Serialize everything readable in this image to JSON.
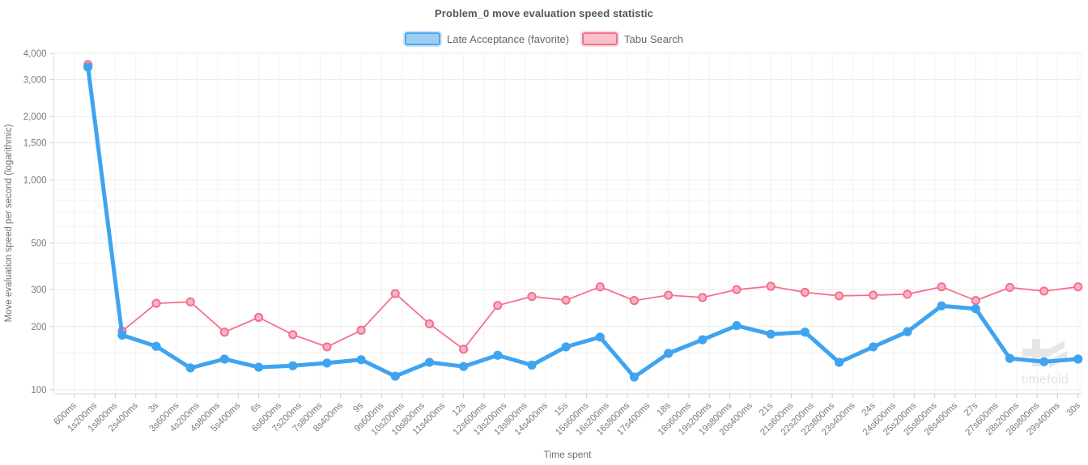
{
  "header": {
    "title": "Problem_0 move evaluation speed statistic"
  },
  "legend": {
    "items": [
      {
        "label": "Late Acceptance (favorite)",
        "border_color": "#4BA7EF",
        "fill_color": "#9CCEF4"
      },
      {
        "label": "Tabu Search",
        "border_color": "#F2718E",
        "fill_color": "#F9BFCC"
      }
    ]
  },
  "axes": {
    "x_title": "Time spent",
    "y_title": "Move evaluation speed per second (logarithmic)"
  },
  "watermark": {
    "text": "timefold"
  },
  "chart_data": {
    "type": "line",
    "title": "Problem_0 move evaluation speed statistic",
    "xlabel": "Time spent",
    "ylabel": "Move evaluation speed per second (logarithmic)",
    "y_scale": "log",
    "grid": true,
    "legend_position": "top",
    "x_unit": "seconds",
    "x": [
      1,
      2,
      3,
      4,
      5,
      6,
      7,
      8,
      9,
      10,
      11,
      12,
      13,
      14,
      15,
      16,
      17,
      18,
      19,
      20,
      21,
      22,
      23,
      24,
      25,
      26,
      27,
      28,
      29,
      30
    ],
    "series": [
      {
        "name": "Late Acceptance (favorite)",
        "color": "#3FA4F0",
        "line_width": 5,
        "marker": "filled-circle",
        "values": [
          3440,
          182,
          161,
          127,
          140,
          128,
          130,
          134,
          139,
          116,
          135,
          129,
          146,
          131,
          160,
          178,
          115,
          149,
          173,
          202,
          184,
          188,
          135,
          160,
          189,
          251,
          243,
          141,
          136,
          140
        ]
      },
      {
        "name": "Tabu Search",
        "color": "#F4708D",
        "line_width": 1.8,
        "marker": "open-circle",
        "marker_fill": "#F9B3C3",
        "values": [
          3540,
          190,
          258,
          262,
          188,
          221,
          183,
          160,
          192,
          287,
          206,
          156,
          252,
          278,
          267,
          309,
          266,
          282,
          275,
          300,
          311,
          291,
          280,
          282,
          285,
          309,
          266,
          307,
          295,
          309
        ]
      }
    ],
    "x_tick_interval_s": 0.6,
    "x_tick_labels": [
      "600ms",
      "1s200ms",
      "1s800ms",
      "2s400ms",
      "3s",
      "3s600ms",
      "4s200ms",
      "4s800ms",
      "5s400ms",
      "6s",
      "6s600ms",
      "7s200ms",
      "7s800ms",
      "8s400ms",
      "9s",
      "9s600ms",
      "10s200ms",
      "10s800ms",
      "11s400ms",
      "12s",
      "12s600ms",
      "13s200ms",
      "13s800ms",
      "14s400ms",
      "15s",
      "15s600ms",
      "16s200ms",
      "16s800ms",
      "17s400ms",
      "18s",
      "18s600ms",
      "19s200ms",
      "19s800ms",
      "20s400ms",
      "21s",
      "21s600ms",
      "22s200ms",
      "22s800ms",
      "23s400ms",
      "24s",
      "24s600ms",
      "25s200ms",
      "25s800ms",
      "26s400ms",
      "27s",
      "27s600ms",
      "28s200ms",
      "28s800ms",
      "29s400ms",
      "30s"
    ],
    "y_ticks": {
      "labels": [
        "4,000",
        "3,000",
        "2,000",
        "1,500",
        "1,000",
        "500",
        "300",
        "200",
        "100"
      ],
      "values": [
        4000,
        3000,
        2000,
        1500,
        1000,
        500,
        300,
        200,
        100
      ]
    },
    "y_minor_gridlines": [
      900,
      800,
      700,
      600,
      400,
      150
    ],
    "xlim_seconds": [
      0,
      30.1
    ],
    "ylim": [
      95.6,
      4000
    ]
  }
}
